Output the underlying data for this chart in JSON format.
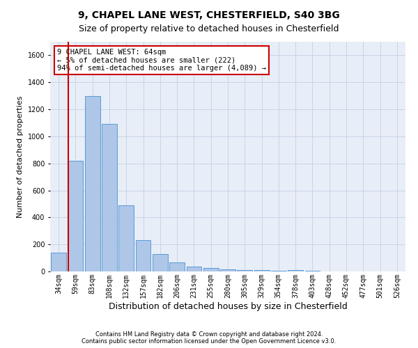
{
  "title1": "9, CHAPEL LANE WEST, CHESTERFIELD, S40 3BG",
  "title2": "Size of property relative to detached houses in Chesterfield",
  "xlabel": "Distribution of detached houses by size in Chesterfield",
  "ylabel": "Number of detached properties",
  "footer": "Contains HM Land Registry data © Crown copyright and database right 2024.\nContains public sector information licensed under the Open Government Licence v3.0.",
  "bar_labels": [
    "34sqm",
    "59sqm",
    "83sqm",
    "108sqm",
    "132sqm",
    "157sqm",
    "182sqm",
    "206sqm",
    "231sqm",
    "255sqm",
    "280sqm",
    "305sqm",
    "329sqm",
    "354sqm",
    "378sqm",
    "403sqm",
    "428sqm",
    "452sqm",
    "477sqm",
    "501sqm",
    "526sqm"
  ],
  "bar_values": [
    140,
    820,
    1300,
    1090,
    490,
    230,
    130,
    65,
    38,
    25,
    15,
    10,
    8,
    5,
    10,
    3,
    2,
    2,
    2,
    2,
    2
  ],
  "bar_color": "#aec6e8",
  "bar_edge_color": "#5b9bd5",
  "vline_color": "#cc0000",
  "annotation_text": "9 CHAPEL LANE WEST: 64sqm\n← 5% of detached houses are smaller (222)\n94% of semi-detached houses are larger (4,089) →",
  "annotation_box_color": "white",
  "annotation_box_edge_color": "#cc0000",
  "ylim": [
    0,
    1700
  ],
  "yticks": [
    0,
    200,
    400,
    600,
    800,
    1000,
    1200,
    1400,
    1600
  ],
  "grid_color": "#c8d4e8",
  "bg_color": "#e8eef7",
  "title1_fontsize": 10,
  "title2_fontsize": 9,
  "ylabel_fontsize": 8,
  "xlabel_fontsize": 9,
  "tick_fontsize": 7,
  "footer_fontsize": 6,
  "annot_fontsize": 7.5
}
